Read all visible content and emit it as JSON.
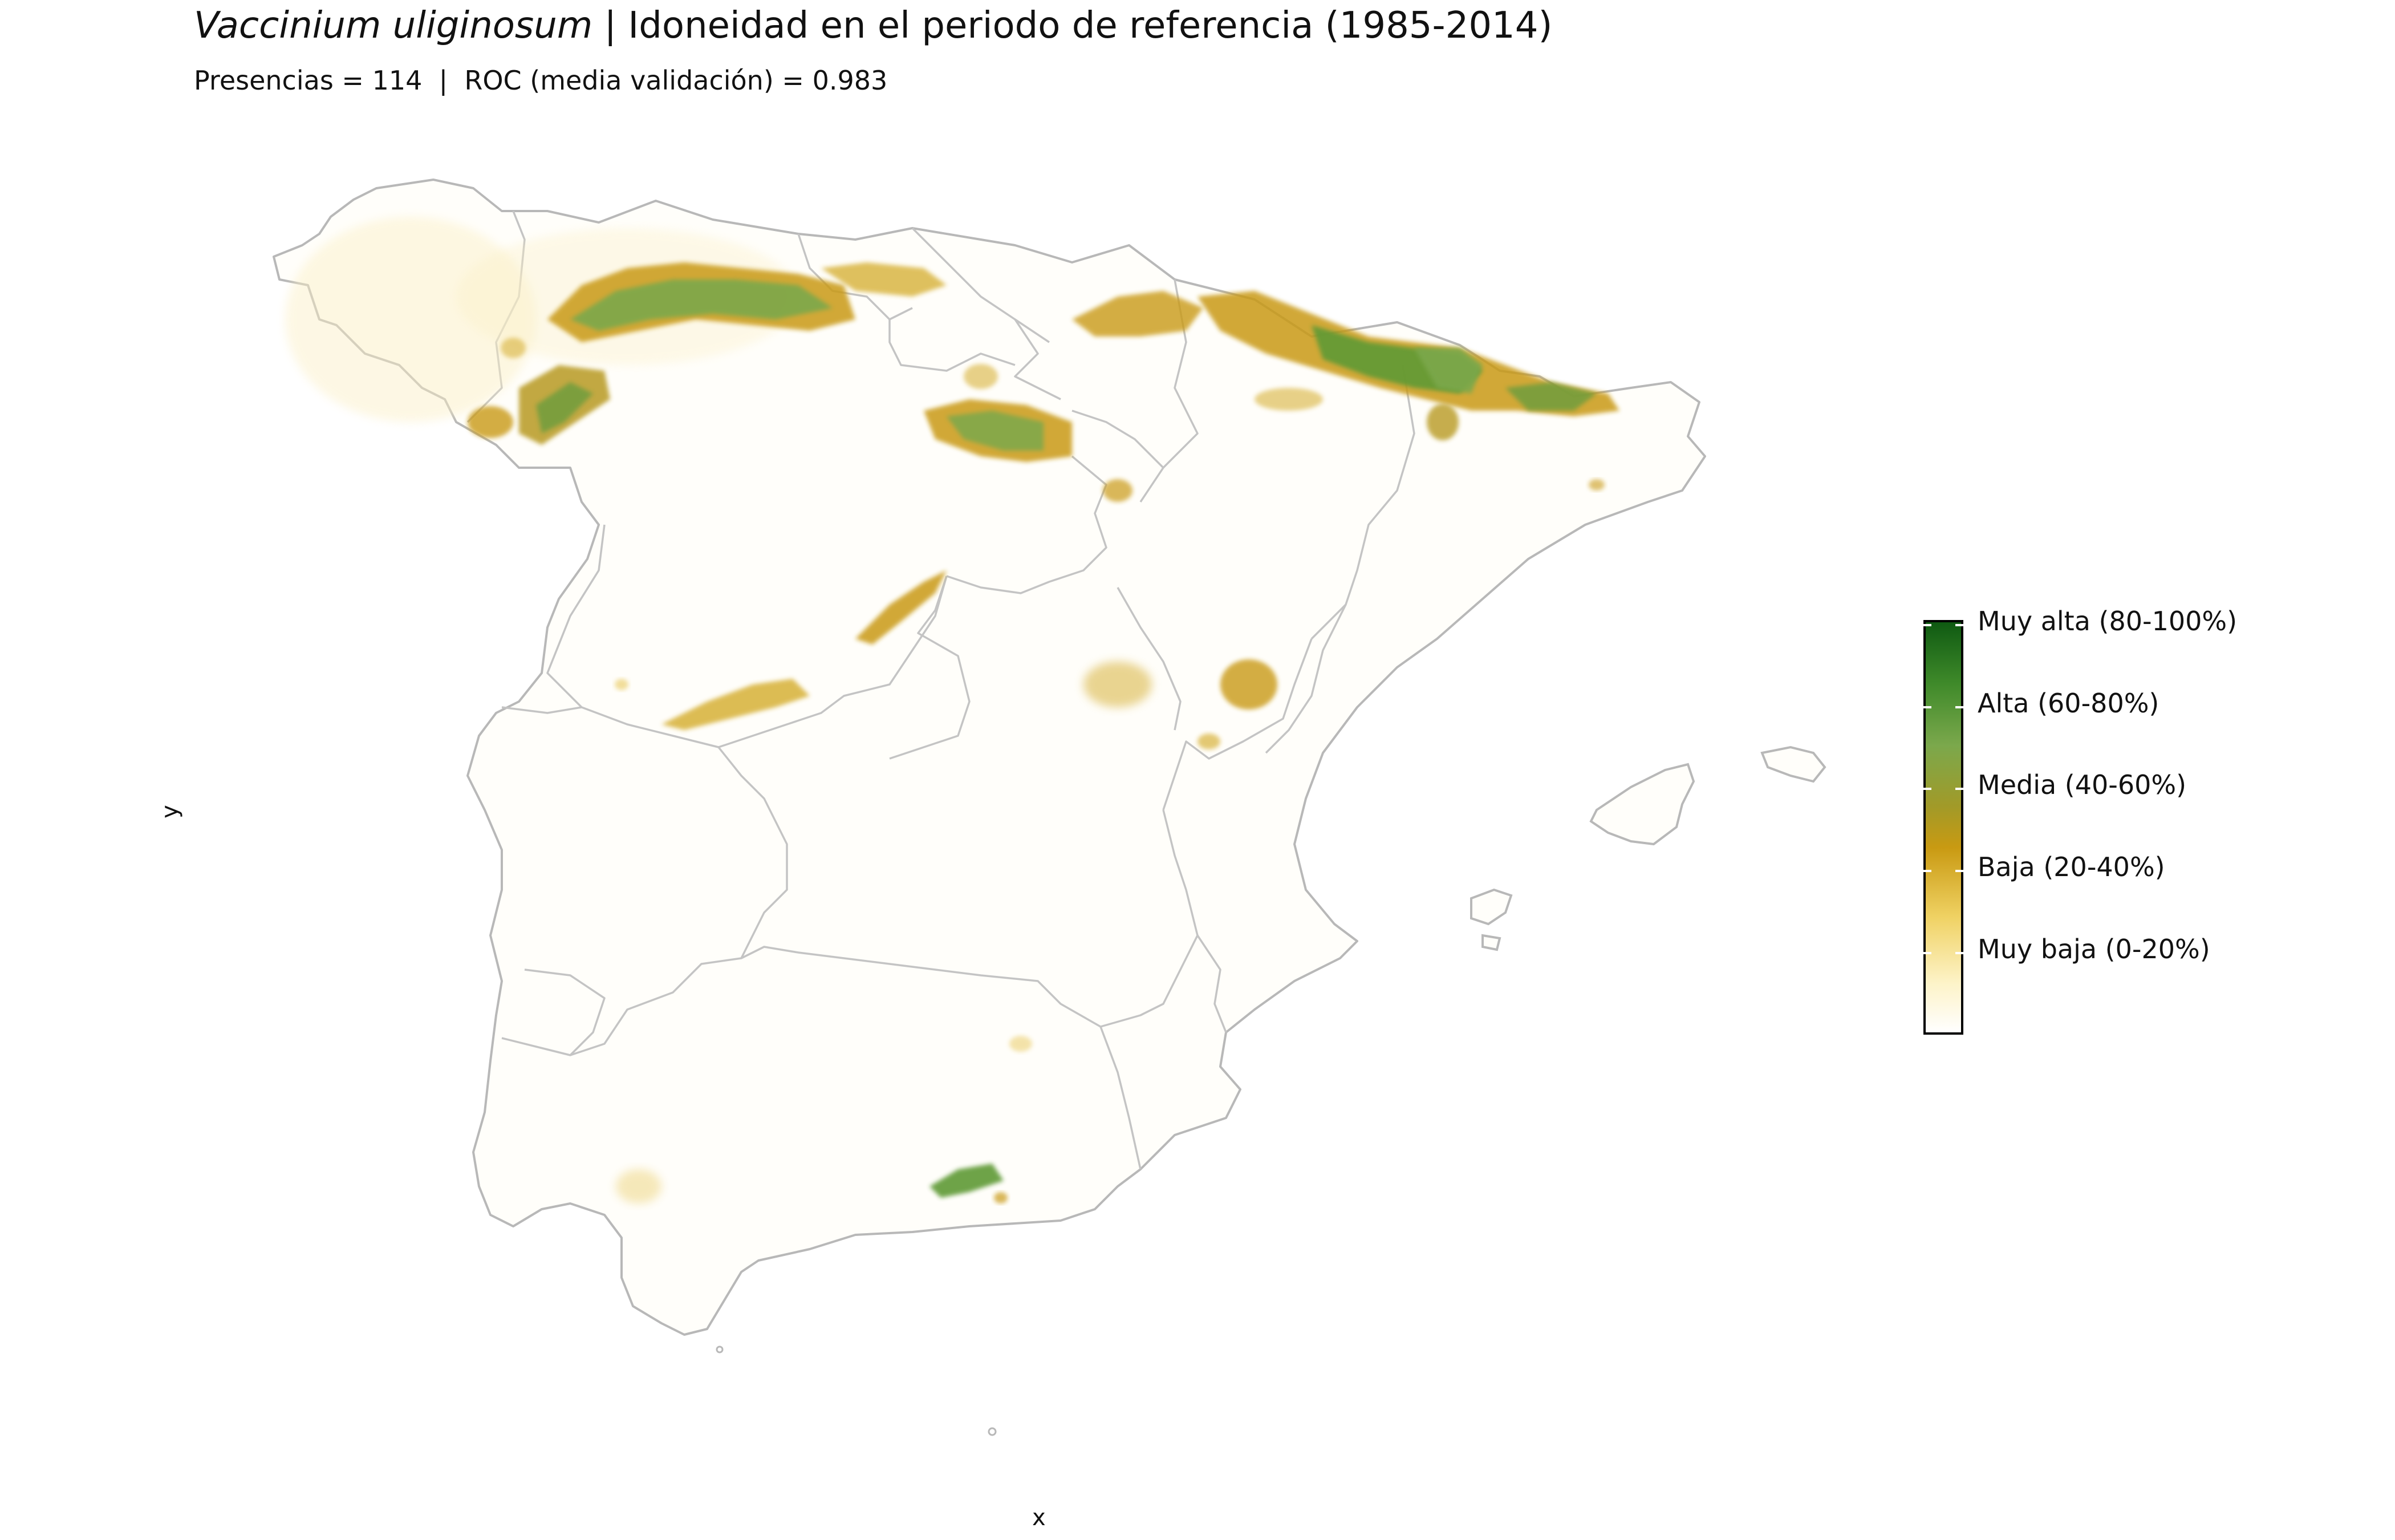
{
  "title": {
    "species": "Vaccinium uliginosum",
    "rest": " | Idoneidad en el periodo de referencia (1985-2014)"
  },
  "subtitle": "Presencias = 114  |  ROC (media validación) = 0.983",
  "axes": {
    "x": "x",
    "y": "y"
  },
  "legend": {
    "labels": [
      "Muy alta (80-100%)",
      "Alta (60-80%)",
      "Media (40-60%)",
      "Baja (20-40%)",
      "Muy baja (0-20%)"
    ]
  },
  "colors": {
    "muy_alta": "#0f5a12",
    "alta": "#7ba84c",
    "media": "#a29a28",
    "baja": "#c99a12",
    "muy_baja": "#f4e08c",
    "border": "#b8b8b8"
  }
}
